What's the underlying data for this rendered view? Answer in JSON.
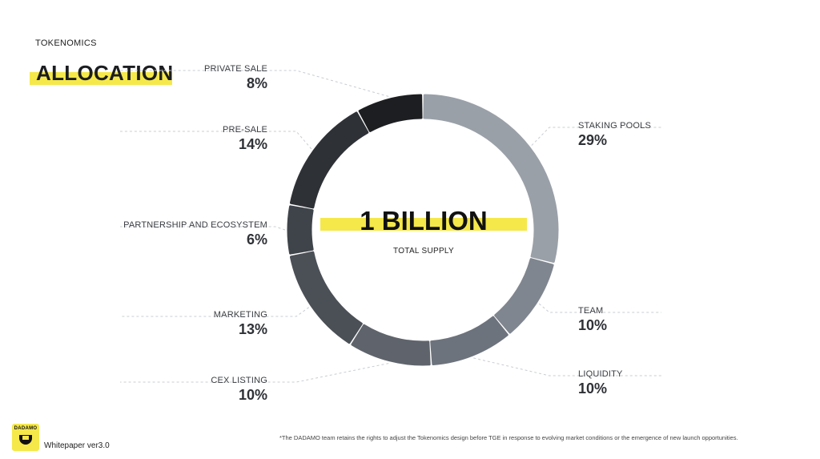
{
  "header": {
    "kicker": "TOKENOMICS",
    "title": "ALLOCATION"
  },
  "center": {
    "value": "1 BILLION",
    "label": "TOTAL SUPPLY"
  },
  "chart_data": {
    "type": "pie",
    "style": "donut",
    "title": "ALLOCATION",
    "total": "1 BILLION",
    "slices": [
      {
        "label": "STAKING POOLS",
        "value": 29,
        "display": "29%",
        "color": "#9aa0a8"
      },
      {
        "label": "TEAM",
        "value": 10,
        "display": "10%",
        "color": "#80868f"
      },
      {
        "label": "LIQUIDITY",
        "value": 10,
        "display": "10%",
        "color": "#6d737c"
      },
      {
        "label": "CEX LISTING",
        "value": 10,
        "display": "10%",
        "color": "#5f646c"
      },
      {
        "label": "MARKETING",
        "value": 13,
        "display": "13%",
        "color": "#4b5057"
      },
      {
        "label": "PARTNERSHIP AND ECOSYSTEM",
        "value": 6,
        "display": "6%",
        "color": "#3f444b"
      },
      {
        "label": "PRE-SALE",
        "value": 14,
        "display": "14%",
        "color": "#2e3136"
      },
      {
        "label": "PRIVATE SALE",
        "value": 8,
        "display": "8%",
        "color": "#1d1e21"
      }
    ]
  },
  "footer": {
    "logo_text": "DADAMO",
    "version": "Whitepaper ver3.0",
    "note": "*The DADAMO team retains the rights to adjust the Tokenomics design before TGE in response to evolving market conditions or the emergence of  new launch opportunities."
  },
  "colors": {
    "highlight": "#f5e84a"
  }
}
